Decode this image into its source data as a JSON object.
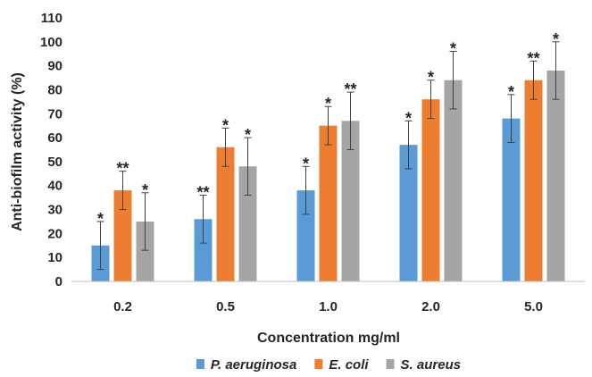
{
  "chart_data": {
    "type": "bar",
    "title": "",
    "xlabel": "Concentration mg/ml",
    "ylabel": "Anti-biofilm activity (%)",
    "ylim": [
      0,
      110
    ],
    "yticks": [
      0,
      10,
      20,
      30,
      40,
      50,
      60,
      70,
      80,
      90,
      100,
      110
    ],
    "categories": [
      "0.2",
      "0.5",
      "1.0",
      "2.0",
      "5.0"
    ],
    "grid": false,
    "legend": "bottom",
    "series": [
      {
        "name": "P. aeruginosa",
        "color": "#5B9BD5",
        "values": [
          15,
          26,
          38,
          57,
          68
        ],
        "errors": [
          10,
          10,
          10,
          10,
          10
        ],
        "significance": [
          "*",
          "**",
          "*",
          "*",
          "*"
        ]
      },
      {
        "name": "E. coli",
        "color": "#ED7D31",
        "values": [
          38,
          56,
          65,
          76,
          84
        ],
        "errors": [
          8,
          8,
          8,
          8,
          8
        ],
        "significance": [
          "**",
          "*",
          "*",
          "*",
          "**"
        ]
      },
      {
        "name": "S. aureus",
        "color": "#A5A5A5",
        "values": [
          25,
          48,
          67,
          84,
          88
        ],
        "errors": [
          12,
          12,
          12,
          12,
          12
        ],
        "significance": [
          "*",
          "*",
          "**",
          "*",
          "*"
        ]
      }
    ]
  }
}
